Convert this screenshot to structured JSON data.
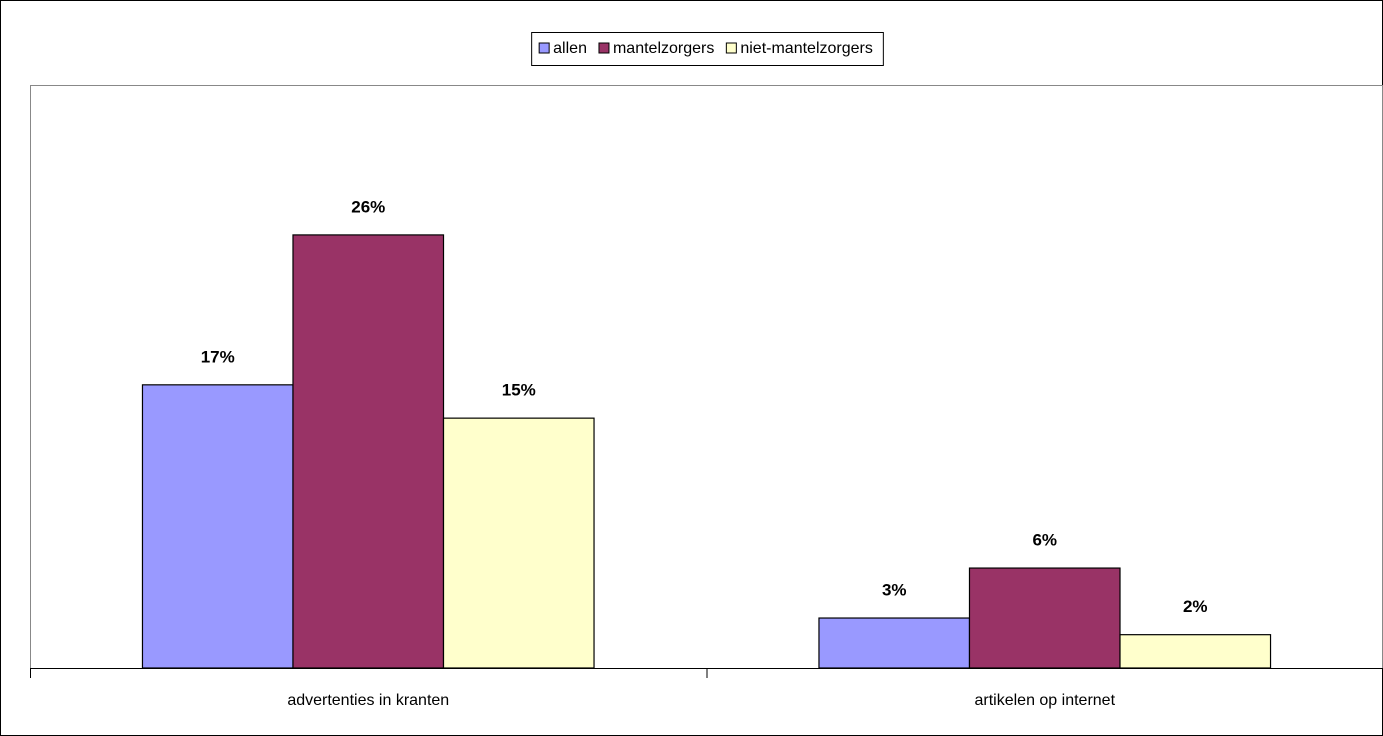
{
  "chart_data": {
    "type": "bar",
    "categories": [
      "advertenties in kranten",
      "artikelen op internet"
    ],
    "series": [
      {
        "name": "allen",
        "color": "#9999ff",
        "values": [
          17,
          3
        ],
        "value_labels": [
          "17%",
          "3%"
        ]
      },
      {
        "name": "mantelzorgers",
        "color": "#993366",
        "values": [
          26,
          6
        ],
        "value_labels": [
          "26%",
          "6%"
        ]
      },
      {
        "name": "niet-mantelzorgers",
        "color": "#ffffcc",
        "values": [
          15,
          2
        ],
        "value_labels": [
          "15%",
          "2%"
        ]
      }
    ],
    "ylim": [
      0,
      35
    ],
    "legend": "top"
  }
}
